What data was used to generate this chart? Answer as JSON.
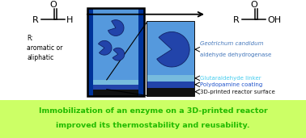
{
  "fig_width": 3.78,
  "fig_height": 1.71,
  "bg_color": "#ffffff",
  "banner_color": "#ccff66",
  "banner_text_line1": "Immobilization of an enzyme on a 3D-printed reactor",
  "banner_text_line2": "improved its thermostability and reusability.",
  "banner_text_color": "#22bb00",
  "label_color_enzyme": "#4477bb",
  "label_color_enzyme_italic": true,
  "label_color_linker": "#44ccee",
  "label_color_polydop": "#2255cc",
  "label_color_surface": "#111111",
  "enzyme_label_l1": "Geotrichum candidum",
  "enzyme_label_l2": "aldehyde dehydrogenase",
  "linker_label": "Glutaraldehyde linker",
  "polydop_label": "Polydopamine coating",
  "surface_label": "3D-printed reactor surface",
  "r_text": "R:\naromatic or\naliphatic",
  "reactor_color_fluid": "#5599dd",
  "reactor_color_walls": "#003399",
  "reactor_color_linker": "#77bbdd",
  "reactor_color_pda": "#2244aa",
  "reactor_color_surface": "#111111",
  "pacman_color": "#2244aa"
}
